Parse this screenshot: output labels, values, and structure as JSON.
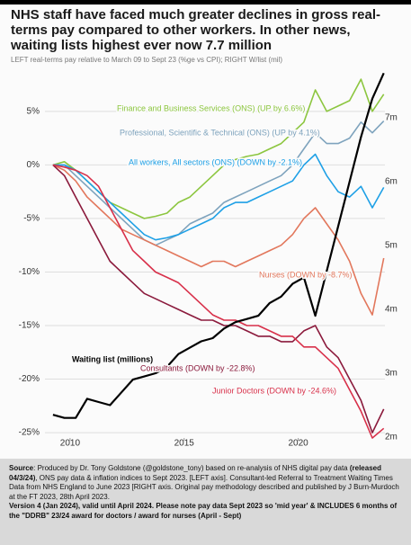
{
  "chart_data": {
    "type": "line",
    "title": "NHS staff have faced much greater declines in gross real-terms pay compared to other workers. In other news, waiting lists highest ever now 7.7 million",
    "subtitle": "LEFT real-terms pay relative to March 09 to Sept 23 (%ge vs CPI); RIGHT W/list (mil)",
    "x": [
      2009.25,
      2009.75,
      2010.25,
      2010.75,
      2011.25,
      2011.75,
      2012.25,
      2012.75,
      2013.25,
      2013.75,
      2014.25,
      2014.75,
      2015.25,
      2015.75,
      2016.25,
      2016.75,
      2017.25,
      2017.75,
      2018.25,
      2018.75,
      2019.25,
      2019.75,
      2020.25,
      2020.75,
      2021.25,
      2021.75,
      2022.25,
      2022.75,
      2023.25,
      2023.75
    ],
    "xlim": [
      2008.9,
      2023.8
    ],
    "xticks": [
      2010,
      2015,
      2020
    ],
    "ylim": [
      -25.75,
      8.85
    ],
    "yticks": [
      {
        "value": 5,
        "label": "5%"
      },
      {
        "value": 0,
        "label": "0%"
      },
      {
        "value": -5,
        "label": "-5%"
      },
      {
        "value": -10,
        "label": "-10%"
      },
      {
        "value": -15,
        "label": "-15%"
      },
      {
        "value": -20,
        "label": "-20%"
      },
      {
        "value": -25,
        "label": "-25%"
      }
    ],
    "y2lim": [
      1.944,
      7.746
    ],
    "y2ticks": [
      {
        "value": 7,
        "label": "7m"
      },
      {
        "value": 6,
        "label": "6m"
      },
      {
        "value": 5,
        "label": "5m"
      },
      {
        "value": 4,
        "label": "4m"
      },
      {
        "value": 3,
        "label": "3m"
      },
      {
        "value": 2,
        "label": "2m"
      }
    ],
    "grid": true,
    "series": [
      {
        "name": "Finance and Business Services (ONS) (UP by 6.6%)",
        "color": "#8cc63f",
        "values": [
          0,
          0.3,
          -0.5,
          -1.5,
          -2.5,
          -3.5,
          -4,
          -4.5,
          -5,
          -4.8,
          -4.5,
          -3.5,
          -3,
          -2,
          -1,
          0,
          0.5,
          0.8,
          1,
          1.5,
          2,
          3,
          4,
          7,
          5,
          5.5,
          6,
          8,
          5,
          6.6
        ]
      },
      {
        "name": "Professional, Scientific & Technical (ONS) (UP by 4.1%)",
        "color": "#7ea3bd",
        "values": [
          0,
          0,
          -1,
          -2,
          -3,
          -4,
          -5,
          -6,
          -7,
          -7.5,
          -7,
          -6.5,
          -5.5,
          -5,
          -4.5,
          -3.5,
          -3,
          -2.5,
          -2,
          -1.5,
          -1,
          0,
          1.5,
          3,
          2,
          2,
          2.5,
          4,
          3,
          4.1
        ]
      },
      {
        "name": "All workers, All sectors (ONS) (DOWN by -2.1%)",
        "color": "#1ea0e6",
        "values": [
          0,
          0,
          -0.5,
          -1.5,
          -2.5,
          -3.5,
          -4.5,
          -5.5,
          -6.5,
          -7,
          -6.8,
          -6.5,
          -6,
          -5.5,
          -5,
          -4,
          -3.5,
          -3.5,
          -3,
          -2.5,
          -2,
          -1.5,
          0,
          1,
          -1,
          -2.5,
          -3,
          -2,
          -4,
          -2.1
        ]
      },
      {
        "name": "Nurses (DOWN by -8.7%)",
        "color": "#e2775c",
        "values": [
          0,
          -0.5,
          -1.5,
          -3,
          -4,
          -5,
          -6,
          -6.5,
          -7,
          -7.5,
          -8,
          -8.5,
          -9,
          -9.5,
          -9,
          -9,
          -9.5,
          -9,
          -8.5,
          -8,
          -7.5,
          -6.5,
          -5,
          -4,
          -5.5,
          -7,
          -9,
          -12,
          -14,
          -8.7
        ]
      },
      {
        "name": "Consultants (DOWN by -22.8%)",
        "color": "#8b1a3c",
        "values": [
          0,
          -1,
          -3,
          -5,
          -7,
          -9,
          -10,
          -11,
          -12,
          -12.5,
          -13,
          -13.5,
          -14,
          -14.5,
          -14.5,
          -15,
          -15,
          -15.5,
          -16,
          -16,
          -16.5,
          -16.5,
          -15.5,
          -15,
          -17,
          -18,
          -20,
          -22,
          -25,
          -22.8
        ]
      },
      {
        "name": "Junior Doctors (DOWN by -24.6%)",
        "color": "#d8304a",
        "values": [
          0,
          -0.2,
          -0.5,
          -1,
          -2,
          -4,
          -6,
          -8,
          -9,
          -10,
          -10.5,
          -11,
          -12,
          -13,
          -14,
          -14.5,
          -14.5,
          -15,
          -15,
          -15.5,
          -16,
          -16,
          -17,
          -17,
          -18,
          -19,
          -21,
          -23,
          -25.5,
          -24.6
        ]
      },
      {
        "name": "Waiting list (millions)",
        "color": "#000000",
        "axis": "y2",
        "values": [
          2.35,
          2.3,
          2.3,
          2.6,
          2.55,
          2.5,
          2.7,
          2.9,
          2.95,
          3.0,
          3.1,
          3.3,
          3.4,
          3.5,
          3.55,
          3.7,
          3.8,
          3.85,
          3.9,
          4.1,
          4.2,
          4.4,
          4.5,
          3.9,
          4.6,
          5.3,
          6.0,
          6.7,
          7.3,
          7.7
        ]
      }
    ]
  },
  "footer": {
    "segments": [
      {
        "text": "Source",
        "bold": true
      },
      {
        "text": ": Produced by Dr. Tony Goldstone (@goldstone_tony) based on re-analysis of NHS digital pay data ",
        "bold": false
      },
      {
        "text": "(released 04/3/24)",
        "bold": true
      },
      {
        "text": ", ONS pay data & inflation indices to Sept 2023. [LEFT axis]. Consultant-led Referral to Treatment Waiting Times Data from NHS England to June 2023 [RIGHT axis. Original pay methodology described and published by J Burn-Murdoch at the FT 2023, 28th April 2023.",
        "bold": false
      },
      {
        "text": "Version 4 (Jan 2024), valid until April 2024. Please note pay data Sept 2023 so 'mid year' & INCLUDES 6 months of the \"DDRB\" 23/24 award  for doctors / award for nurses (April - Sept)",
        "bold": true
      }
    ]
  }
}
